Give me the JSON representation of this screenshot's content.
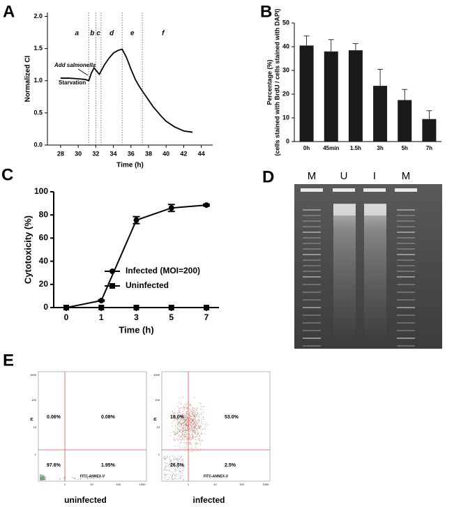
{
  "chart_data": [
    {
      "panel": "A",
      "type": "line",
      "x": [
        28,
        29,
        30,
        30.8,
        31.2,
        31.5,
        31.8,
        32.1,
        32.4,
        33,
        33.5,
        34,
        34.5,
        35,
        35.5,
        36,
        36.5,
        37,
        37.5,
        38,
        38.5,
        39,
        39.5,
        40,
        41,
        42,
        43
      ],
      "series": [
        {
          "color": "#000000",
          "values": [
            1.04,
            1.04,
            1.03,
            1.02,
            1.0,
            1.12,
            1.2,
            1.15,
            1.1,
            1.25,
            1.35,
            1.43,
            1.47,
            1.49,
            1.36,
            1.18,
            1.02,
            0.9,
            0.8,
            0.7,
            0.6,
            0.52,
            0.44,
            0.37,
            0.28,
            0.22,
            0.2
          ]
        }
      ],
      "xlim": [
        26.5,
        45.3
      ],
      "xticks": [
        28,
        30,
        32,
        34,
        36,
        38,
        40,
        42,
        44
      ],
      "ylim": [
        0,
        2.06
      ],
      "yticks": [
        {
          "value": 0,
          "label": "0.0"
        },
        {
          "value": 0.5,
          "label": "0.5"
        },
        {
          "value": 1,
          "label": "1.0"
        },
        {
          "value": 1.5,
          "label": "1.5"
        },
        {
          "value": 2,
          "label": "2.0"
        }
      ],
      "x_label": "Time (h)",
      "y_label": "Normalized CI",
      "phase_bounds": [
        31.2,
        32.0,
        32.6,
        35.0,
        37.3
      ],
      "phases": [
        "a",
        "b",
        "c",
        "d",
        "e",
        "f"
      ],
      "annotations": [
        "Add salmonella",
        "Starvation"
      ]
    },
    {
      "panel": "B",
      "type": "bar",
      "categories": [
        "0h",
        "45min",
        "1.5h",
        "3h",
        "5h",
        "7h"
      ],
      "values": [
        40.5,
        38,
        38.5,
        23.5,
        17.5,
        9.5
      ],
      "errors": [
        4,
        5,
        2.8,
        7,
        4.5,
        3.5
      ],
      "color": "#1a1a1a",
      "ylim": [
        0,
        50
      ],
      "yticks": [
        0,
        10,
        20,
        30,
        40,
        50
      ],
      "y_label": [
        "Percentage (%)",
        "(cells stained with BrdU / cells stained with DAPI)"
      ]
    },
    {
      "panel": "C",
      "type": "line_error",
      "categories": [
        "0",
        "1",
        "3",
        "5",
        "7"
      ],
      "series": [
        {
          "name": "Infected (MOI=200)",
          "color": "#000000",
          "marker": "circle",
          "values": [
            0,
            6,
            75.5,
            86,
            88.5
          ],
          "errors": [
            0,
            0.5,
            3,
            3,
            0.8
          ]
        },
        {
          "name": "Uninfected",
          "color": "#000000",
          "marker": "square",
          "values": [
            0,
            0,
            0,
            0,
            0
          ],
          "errors": [
            0,
            0,
            0,
            0,
            0
          ]
        }
      ],
      "ylim": [
        0,
        100
      ],
      "yticks": [
        0,
        20,
        40,
        60,
        80,
        100
      ],
      "x_label": "Time (h)",
      "y_label": "Cytotoxicity (%)"
    }
  ],
  "gel": {
    "panel": "D",
    "lanes": [
      "M",
      "U",
      "I",
      "M"
    ]
  },
  "flow": {
    "panel": "E",
    "x_label": "FITC-ANNEX-V",
    "y_label": "PI",
    "ticks": [
      "1",
      "10",
      "100",
      "1000"
    ],
    "plots": [
      {
        "caption": "uninfected",
        "quadrants": [
          "0.06%",
          "0.08%",
          "97.6%",
          "1.95%"
        ]
      },
      {
        "caption": "infected",
        "quadrants": [
          "18.0%",
          "53.0%",
          "26.5%",
          "2.5%"
        ]
      }
    ]
  }
}
